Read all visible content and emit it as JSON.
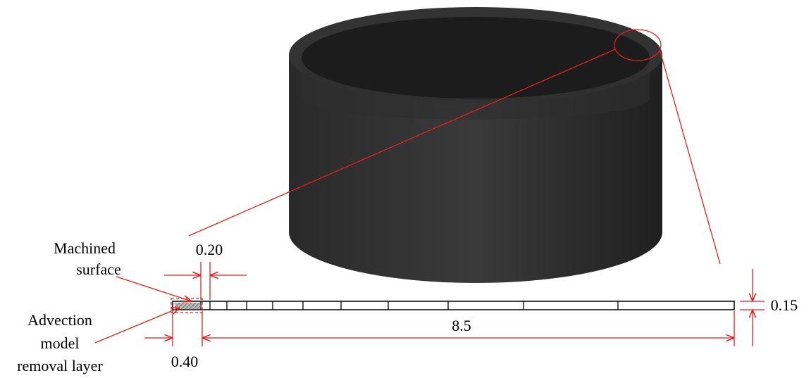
{
  "labels": {
    "machined": [
      "Machined",
      "surface"
    ],
    "advection": [
      "Advection",
      "model",
      "removal layer"
    ],
    "dim_020": "0.20",
    "dim_015": "0.15",
    "dim_85": "8.5",
    "dim_040": "0.40"
  }
}
